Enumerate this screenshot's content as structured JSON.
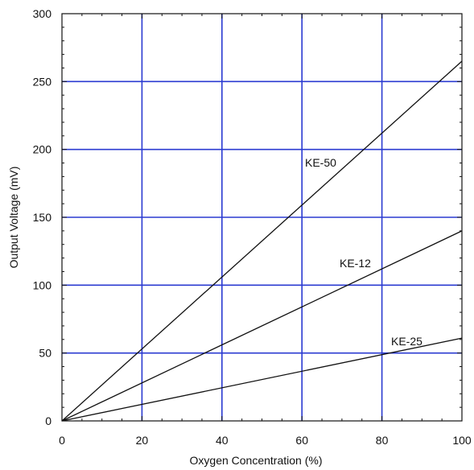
{
  "chart_data": {
    "type": "line",
    "title": "",
    "xlabel": "Oxygen Concentration (%)",
    "ylabel": "Output Voltage (mV)",
    "xlim": [
      0,
      100
    ],
    "ylim": [
      0,
      300
    ],
    "x_ticks": [
      "0",
      "20",
      "40",
      "60",
      "80",
      "100"
    ],
    "y_ticks": [
      "0",
      "50",
      "100",
      "150",
      "200",
      "250",
      "300"
    ],
    "x_tick_values": [
      0,
      20,
      40,
      60,
      80,
      100
    ],
    "y_tick_values": [
      0,
      50,
      100,
      150,
      200,
      250,
      300
    ],
    "grid": true,
    "grid_color": "#2b3bd1",
    "line_color": "#111111",
    "series": [
      {
        "name": "KE-50",
        "x": [
          0,
          100
        ],
        "y": [
          0,
          265
        ]
      },
      {
        "name": "KE-12",
        "x": [
          0,
          100
        ],
        "y": [
          0,
          140
        ]
      },
      {
        "name": "KE-25",
        "x": [
          0,
          100
        ],
        "y": [
          0,
          61
        ]
      }
    ]
  }
}
